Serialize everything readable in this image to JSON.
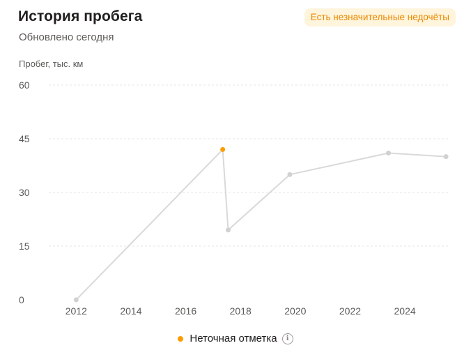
{
  "header": {
    "title": "История пробега",
    "subtitle": "Обновлено сегодня",
    "badge": "Есть незначительные недочёты"
  },
  "legend": {
    "label": "Неточная отметка",
    "info_icon": "info-icon"
  },
  "colors": {
    "line": "#d9d9d9",
    "point": "#d1d1d1",
    "inaccurate_point": "#ff9d00",
    "badge_bg": "#fff4dc",
    "badge_text": "#e88a00",
    "grid": "#e4e4e4"
  },
  "chart_data": {
    "type": "line",
    "title": "",
    "xlabel": "",
    "ylabel": "Пробег, тыс. км",
    "xlim": [
      2011.0,
      2025.6
    ],
    "ylim": [
      0,
      60
    ],
    "y_ticks": [
      0,
      15,
      30,
      45,
      60
    ],
    "x_ticks": [
      2012,
      2014,
      2016,
      2018,
      2020,
      2022,
      2024
    ],
    "grid": true,
    "legend_position": "bottom",
    "series": [
      {
        "points": [
          {
            "x": 2012.0,
            "y": 0,
            "inaccurate": false
          },
          {
            "x": 2017.35,
            "y": 42,
            "inaccurate": true
          },
          {
            "x": 2017.55,
            "y": 19.5,
            "inaccurate": false
          },
          {
            "x": 2019.8,
            "y": 35,
            "inaccurate": false
          },
          {
            "x": 2023.4,
            "y": 41,
            "inaccurate": false
          },
          {
            "x": 2025.5,
            "y": 40,
            "inaccurate": false
          }
        ]
      }
    ]
  }
}
